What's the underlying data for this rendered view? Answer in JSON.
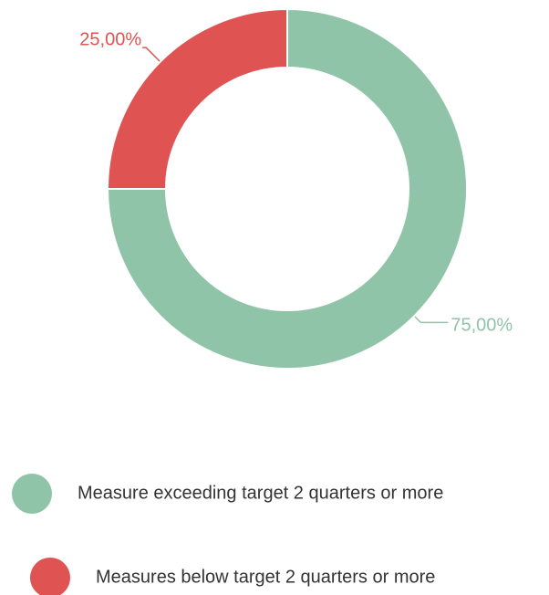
{
  "chart_data": {
    "type": "donut",
    "categories": [
      "Measure exceeding target 2 quarters or more",
      "Measures below target 2 quarters or more"
    ],
    "values": [
      75,
      25
    ],
    "value_labels": [
      "75,00%",
      "25,00%"
    ],
    "colors": [
      "#8fc4a8",
      "#e05353"
    ],
    "legend": "bottom"
  }
}
